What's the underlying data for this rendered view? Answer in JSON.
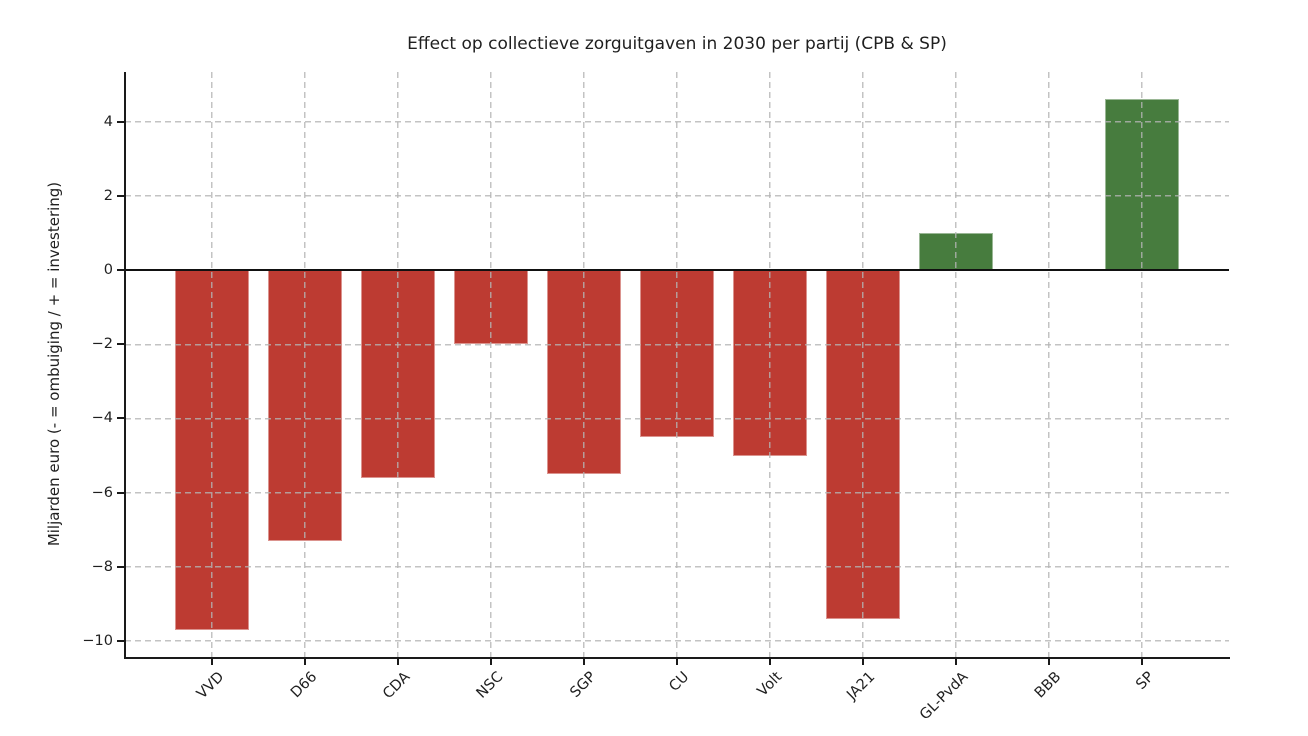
{
  "chart_data": {
    "type": "bar",
    "title": "Effect op collectieve zorguitgaven in 2030 per partij (CPB & SP)",
    "xlabel": "",
    "ylabel": "Miljarden euro (- = ombuiging / + = investering)",
    "categories": [
      "VVD",
      "D66",
      "CDA",
      "NSC",
      "SGP",
      "CU",
      "Volt",
      "JA21",
      "GL-PvdA",
      "BBB",
      "SP"
    ],
    "values": [
      -9.7,
      -7.3,
      -5.6,
      -2.0,
      -5.5,
      -4.5,
      -5.0,
      -9.4,
      1.0,
      0.0,
      4.6
    ],
    "yticks": [
      4,
      2,
      0,
      -2,
      -4,
      -6,
      -8,
      -10
    ],
    "ytick_labels": [
      "4",
      "2",
      "0",
      "−2",
      "−4",
      "−6",
      "−8",
      "−10"
    ],
    "ylim": [
      -10.43,
      5.34
    ],
    "grid": true,
    "grid_style": "dashed",
    "legend": null,
    "zero_line": true,
    "colors": {
      "positive": "#477c3e",
      "negative": "#bd3b32",
      "grid": "#c9c9c9",
      "axis": "#1a1a1a",
      "text": "#1f1f1f",
      "background": "#ffffff"
    }
  }
}
